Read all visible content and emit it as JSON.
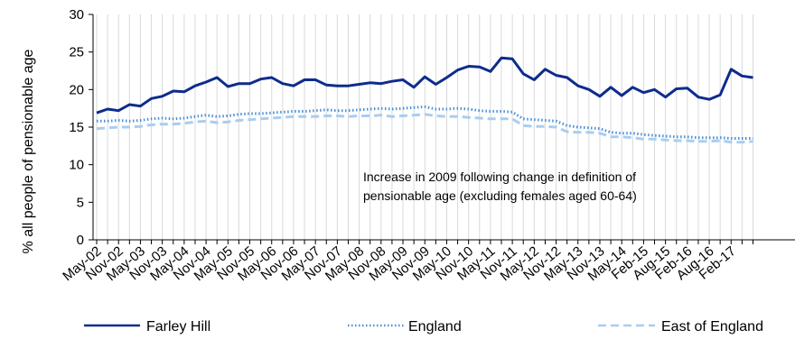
{
  "chart_data": {
    "type": "line",
    "title": "",
    "xlabel": "",
    "ylabel": "% all people of pensionable age",
    "ylim": [
      0,
      30
    ],
    "yticks": [
      0,
      5,
      10,
      15,
      20,
      25,
      30
    ],
    "grid": "vertical",
    "legend_position": "bottom",
    "x_labels": [
      "May-02",
      "Nov-02",
      "May-03",
      "Nov-03",
      "May-04",
      "Nov-04",
      "May-05",
      "Nov-05",
      "May-06",
      "Nov-06",
      "May-07",
      "Nov-07",
      "May-08",
      "Nov-08",
      "May-09",
      "Nov-09",
      "May-10",
      "Nov-10",
      "May-11",
      "Nov-11",
      "May-12",
      "Nov-12",
      "May-13",
      "Nov-13",
      "May-14",
      "Feb-15",
      "Aug-15",
      "Feb-16",
      "Aug-16",
      "Feb-17"
    ],
    "x_label_index": [
      0,
      2,
      4,
      6,
      8,
      10,
      12,
      14,
      16,
      18,
      20,
      22,
      24,
      26,
      28,
      30,
      32,
      34,
      36,
      38,
      40,
      42,
      44,
      46,
      48,
      50,
      52,
      54,
      56,
      58
    ],
    "n_points": 61,
    "annotation": {
      "line1": "Increase in 2009 following change in definition of",
      "line2": "pensionable age (excluding females aged 60-64)"
    },
    "series": [
      {
        "name": "Farley Hill",
        "color": "#0d2c8c",
        "style": "solid",
        "values": [
          16.9,
          17.4,
          17.2,
          18.0,
          17.8,
          18.8,
          19.1,
          19.8,
          19.7,
          20.5,
          21.0,
          21.6,
          20.4,
          20.8,
          20.8,
          21.4,
          21.6,
          20.8,
          20.5,
          21.3,
          21.3,
          20.6,
          20.5,
          20.5,
          20.7,
          20.9,
          20.8,
          21.1,
          21.3,
          20.3,
          21.7,
          20.7,
          21.6,
          22.6,
          23.1,
          23.0,
          22.4,
          24.2,
          24.1,
          22.1,
          21.3,
          22.7,
          21.9,
          21.6,
          20.5,
          20.0,
          19.1,
          20.3,
          19.2,
          20.3,
          19.6,
          20.0,
          19.0,
          20.1,
          20.2,
          19.0,
          18.7,
          19.3,
          22.7,
          21.8,
          21.6
        ]
      },
      {
        "name": "England",
        "color": "#4a8fd8",
        "style": "dotted",
        "values": [
          15.8,
          15.8,
          15.9,
          15.8,
          15.9,
          16.1,
          16.2,
          16.1,
          16.2,
          16.4,
          16.6,
          16.4,
          16.5,
          16.7,
          16.8,
          16.8,
          16.9,
          17.0,
          17.1,
          17.1,
          17.2,
          17.3,
          17.2,
          17.2,
          17.3,
          17.4,
          17.5,
          17.4,
          17.5,
          17.6,
          17.7,
          17.4,
          17.4,
          17.5,
          17.4,
          17.2,
          17.1,
          17.1,
          17.0,
          16.1,
          16.0,
          15.9,
          15.8,
          15.2,
          15.0,
          14.9,
          14.8,
          14.3,
          14.2,
          14.2,
          14.0,
          13.9,
          13.8,
          13.7,
          13.7,
          13.6,
          13.6,
          13.6,
          13.5,
          13.5,
          13.5
        ]
      },
      {
        "name": "East of England",
        "color": "#a8cdf0",
        "style": "dashed",
        "values": [
          14.8,
          14.9,
          15.0,
          15.0,
          15.1,
          15.3,
          15.4,
          15.4,
          15.5,
          15.7,
          15.8,
          15.6,
          15.7,
          15.9,
          16.0,
          16.1,
          16.2,
          16.3,
          16.4,
          16.4,
          16.4,
          16.5,
          16.5,
          16.4,
          16.5,
          16.5,
          16.6,
          16.4,
          16.5,
          16.6,
          16.7,
          16.5,
          16.4,
          16.4,
          16.3,
          16.2,
          16.1,
          16.1,
          16.1,
          15.2,
          15.1,
          15.1,
          15.0,
          14.4,
          14.3,
          14.3,
          14.2,
          13.7,
          13.7,
          13.6,
          13.4,
          13.4,
          13.3,
          13.2,
          13.2,
          13.1,
          13.1,
          13.2,
          13.0,
          13.0,
          13.1
        ]
      }
    ]
  }
}
